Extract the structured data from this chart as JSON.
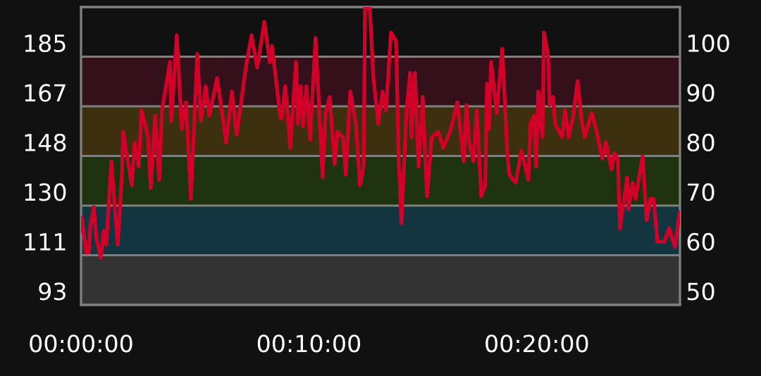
{
  "chart_data": {
    "type": "line",
    "x": [
      0,
      0.03,
      0.22,
      0.34,
      0.4,
      0.56,
      0.68,
      0.87,
      0.99,
      1.11,
      1.33,
      1.48,
      1.61,
      1.79,
      1.85,
      2.04,
      2.23,
      2.35,
      2.53,
      2.66,
      2.84,
      2.94,
      3.06,
      3.25,
      3.43,
      3.55,
      3.9,
      3.96,
      4.2,
      4.42,
      4.61,
      4.82,
      5.1,
      5.26,
      5.47,
      5.63,
      5.97,
      6.37,
      6.62,
      6.83,
      7.23,
      7.48,
      7.73,
      8.04,
      8.28,
      8.38,
      8.75,
      8.81,
      8.96,
      9.18,
      9.43,
      9.52,
      9.64,
      9.74,
      9.89,
      10.05,
      10.29,
      10.6,
      10.73,
      10.91,
      11.13,
      11.25,
      11.5,
      11.62,
      11.81,
      12.06,
      12.24,
      12.4,
      12.46,
      12.67,
      12.83,
      13.04,
      13.23,
      13.38,
      13.6,
      13.82,
      13.94,
      14.06,
      14.28,
      14.44,
      14.5,
      14.65,
      14.81,
      14.99,
      15.18,
      15.39,
      15.67,
      15.89,
      16.23,
      16.51,
      16.79,
      16.91,
      17.03,
      17.22,
      17.37,
      17.56,
      17.74,
      17.81,
      17.9,
      17.99,
      18.24,
      18.48,
      18.7,
      18.79,
      19.07,
      19.32,
      19.63,
      19.72,
      19.88,
      19.97,
      20.06,
      20.25,
      20.31,
      20.49,
      20.56,
      20.71,
      20.8,
      21.11,
      21.24,
      21.39,
      21.58,
      21.79,
      21.95,
      22.1,
      22.41,
      22.63,
      22.87,
      23.03,
      23.28,
      23.4,
      23.55,
      23.65,
      23.96,
      24.02,
      24.2,
      24.33,
      24.64,
      24.82,
      24.98,
      25.13,
      25.29,
      25.59,
      25.81,
      26.06,
      26.27
    ],
    "series": [
      {
        "color": "#d10029",
        "values": [
          120,
          125,
          112,
          112,
          121,
          129,
          117,
          110,
          120,
          115,
          146,
          129,
          115,
          140,
          157,
          147,
          137,
          153,
          144,
          165,
          159,
          155,
          136,
          163,
          139,
          165,
          183,
          161,
          193,
          158,
          168,
          132,
          186,
          161,
          174,
          163,
          177,
          153,
          172,
          156,
          181,
          193,
          181,
          198,
          183,
          189,
          162,
          162,
          174,
          151,
          183,
          160,
          174,
          159,
          174,
          154,
          192,
          140,
          164,
          170,
          145,
          157,
          155,
          141,
          172,
          160,
          137,
          144,
          203,
          203,
          177,
          160,
          172,
          165,
          194,
          191,
          146,
          123,
          165,
          179,
          155,
          179,
          144,
          170,
          133,
          155,
          157,
          151,
          158,
          168,
          146,
          167,
          153,
          146,
          165,
          133,
          137,
          175,
          158,
          183,
          164,
          188,
          150,
          141,
          138,
          150,
          139,
          160,
          163,
          144,
          172,
          155,
          194,
          186,
          167,
          170,
          160,
          155,
          165,
          155,
          162,
          176,
          162,
          155,
          164,
          157,
          147,
          153,
          143,
          149,
          147,
          121,
          140,
          128,
          138,
          132,
          148,
          124,
          132,
          132,
          116,
          116,
          121,
          114,
          127
        ]
      }
    ],
    "xlim": [
      0,
      26.28
    ],
    "xticks": [
      {
        "value": 0,
        "label": "00:00:00"
      },
      {
        "value": 10,
        "label": "00:10:00"
      },
      {
        "value": 20,
        "label": "00:20:00"
      }
    ],
    "ylim": [
      92.5,
      203.5
    ],
    "yticks": [
      {
        "value": 92.5,
        "label": "93"
      },
      {
        "value": 111,
        "label": "111"
      },
      {
        "value": 129.5,
        "label": "130"
      },
      {
        "value": 148,
        "label": "148"
      },
      {
        "value": 166.5,
        "label": "167"
      },
      {
        "value": 185,
        "label": "185"
      }
    ],
    "y2lim": [
      50,
      110
    ],
    "y2ticks": [
      50,
      60,
      70,
      80,
      90,
      100
    ],
    "bands": [
      {
        "axis": "y2",
        "from": 50,
        "to": 60,
        "color": "#333333"
      },
      {
        "axis": "y2",
        "from": 60,
        "to": 70,
        "color": "#133540"
      },
      {
        "axis": "y2",
        "from": 70,
        "to": 80,
        "color": "#1e3310"
      },
      {
        "axis": "y2",
        "from": 80,
        "to": 90,
        "color": "#3d300e"
      },
      {
        "axis": "y2",
        "from": 90,
        "to": 100,
        "color": "#33101a"
      }
    ],
    "grid": "y",
    "marker": "none",
    "line_style": "solid"
  }
}
